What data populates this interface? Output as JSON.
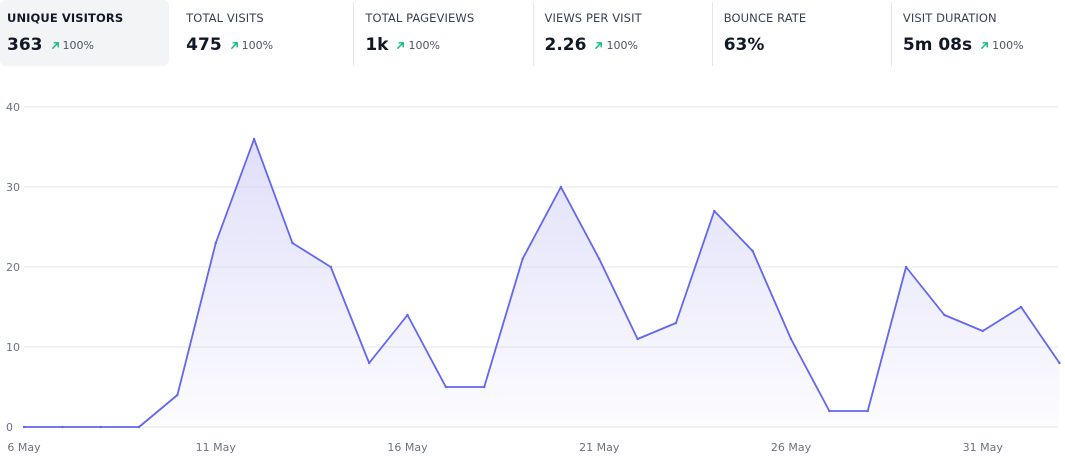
{
  "stats": [
    {
      "label": "UNIQUE VISITORS",
      "value": "363",
      "change": "100%",
      "active": true
    },
    {
      "label": "TOTAL VISITS",
      "value": "475",
      "change": "100%",
      "active": false
    },
    {
      "label": "TOTAL PAGEVIEWS",
      "value": "1k",
      "change": "100%",
      "active": false
    },
    {
      "label": "VIEWS PER VISIT",
      "value": "2.26",
      "change": "100%",
      "active": false
    },
    {
      "label": "BOUNCE RATE",
      "value": "63%",
      "change": "",
      "active": false
    },
    {
      "label": "VISIT DURATION",
      "value": "5m 08s",
      "change": "100%",
      "active": false
    }
  ],
  "colors": {
    "line": "#6366f1",
    "fill_top": "#c7c4f5",
    "grid": "#e5e7eb",
    "axis_text": "#6b7280",
    "positive_change": "#10b981",
    "active_tile_bg": "#f3f4f6"
  },
  "icons": {
    "change": "arrow-up-right-icon"
  },
  "chart_data": {
    "type": "area",
    "title": "",
    "xlabel": "",
    "ylabel": "",
    "ylim": [
      0,
      40
    ],
    "yticks": [
      0,
      10,
      20,
      30,
      40
    ],
    "xtick_labels": [
      "6 May",
      "11 May",
      "16 May",
      "21 May",
      "26 May",
      "31 May"
    ],
    "xtick_positions": [
      0,
      5,
      10,
      15,
      20,
      25
    ],
    "grid": true,
    "series": [
      {
        "values": [
          0,
          0,
          0,
          0,
          4,
          23,
          36,
          23,
          20,
          8,
          14,
          5,
          5,
          21,
          30,
          21,
          11,
          13,
          27,
          22,
          11,
          2,
          2,
          20,
          14,
          12,
          15,
          8
        ]
      }
    ]
  }
}
